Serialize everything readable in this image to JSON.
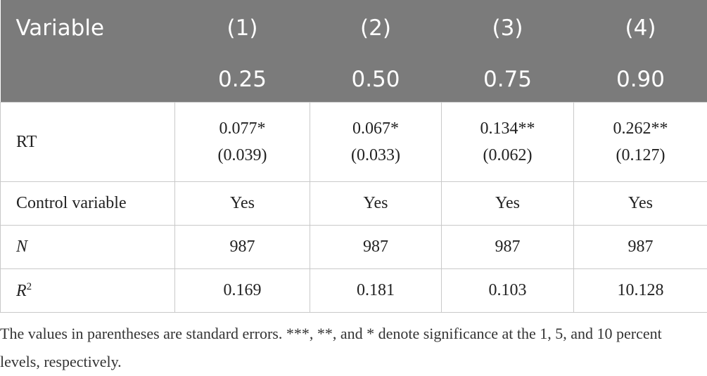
{
  "table": {
    "header": [
      [
        "Variable",
        "(1)",
        "(2)",
        "(3)",
        "(4)"
      ],
      [
        "0.25",
        "0.50",
        "0.75",
        "0.90"
      ]
    ],
    "rows": [
      {
        "label": "RT",
        "cells": [
          [
            "0.077*",
            "(0.039)"
          ],
          [
            "0.067*",
            "(0.033)"
          ],
          [
            "0.134**",
            "(0.062)"
          ],
          [
            "0.262**",
            "(0.127)"
          ]
        ]
      },
      {
        "label": "Control variable",
        "cells": [
          "Yes",
          "Yes",
          "Yes",
          "Yes"
        ]
      },
      {
        "label": "N",
        "italic": true,
        "cells": [
          "987",
          "987",
          "987",
          "987"
        ]
      },
      {
        "label": "R",
        "italic": true,
        "superscript": "2",
        "cells": [
          "0.169",
          "0.181",
          "0.103",
          "10.128"
        ]
      }
    ]
  },
  "note": "The values in parentheses are standard errors. ***, **, and * denote significance at the 1, 5, and 10 percent levels, respectively."
}
